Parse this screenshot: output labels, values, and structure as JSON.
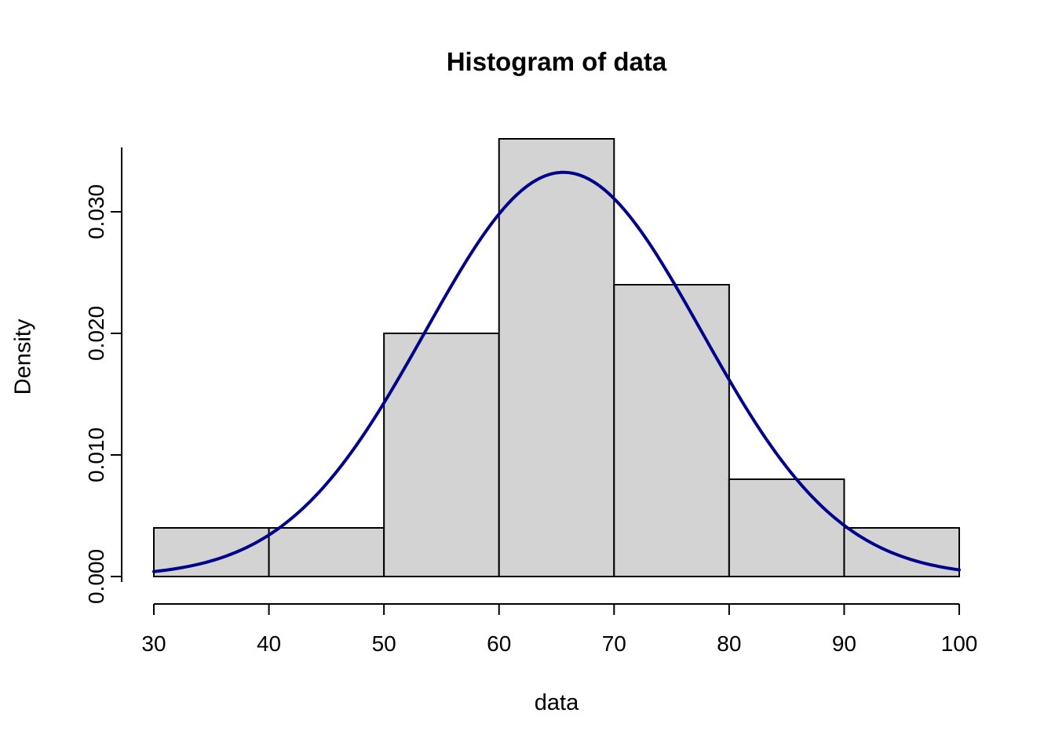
{
  "title": "Histogram of data",
  "axis": {
    "xlabel": "data",
    "ylabel": "Density"
  },
  "chart_data": {
    "type": "bar",
    "subtype": "histogram-with-density-curve",
    "title": "Histogram of data",
    "xlabel": "data",
    "ylabel": "Density",
    "bin_edges": [
      30,
      40,
      50,
      60,
      70,
      80,
      90,
      100
    ],
    "bin_densities": [
      0.004,
      0.004,
      0.02,
      0.036,
      0.024,
      0.008,
      0.004
    ],
    "x_tick_values": [
      30,
      40,
      50,
      60,
      70,
      80,
      90,
      100
    ],
    "x_tick_labels": [
      "30",
      "40",
      "50",
      "60",
      "70",
      "80",
      "90",
      "100"
    ],
    "y_tick_values": [
      0.0,
      0.01,
      0.02,
      0.03
    ],
    "y_tick_labels": [
      "0.000",
      "0.010",
      "0.020",
      "0.030"
    ],
    "xlim": [
      30,
      100
    ],
    "ylim": [
      0,
      0.0365
    ],
    "grid": false,
    "legend_position": "none",
    "overlay_curve": {
      "type": "normal-density",
      "mean": 65.6,
      "sd": 12.0,
      "peak_density": 0.0332,
      "color": "#00008B",
      "stroke_width": 4
    },
    "bar_fill": "#d3d3d3",
    "bar_stroke": "#000000",
    "axis_color": "#000000"
  }
}
